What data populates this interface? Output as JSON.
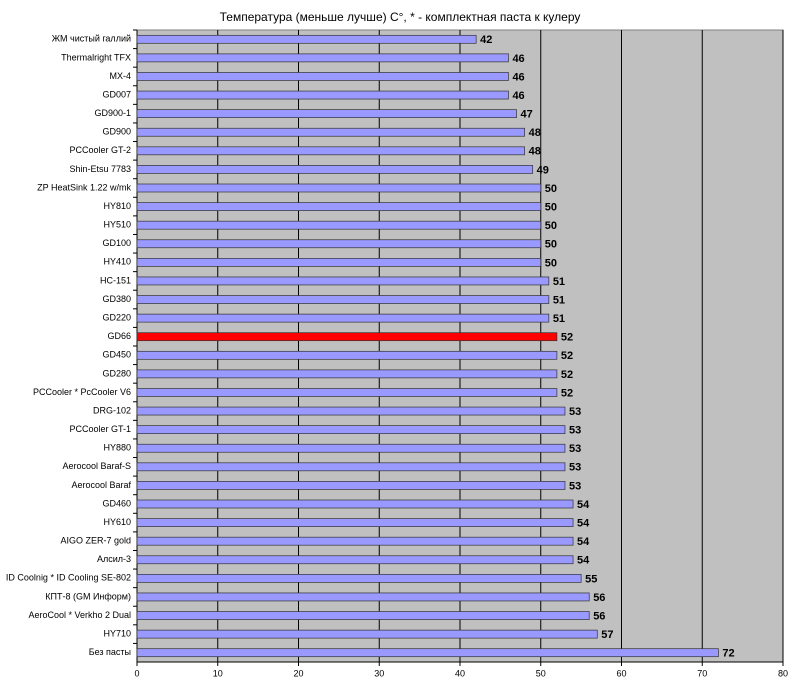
{
  "chart_data": {
    "type": "bar",
    "orientation": "horizontal",
    "title": "Температура (меньше лучше) C°, * - комплектная паста к кулеру",
    "categories": [
      "ЖМ чистый галлий",
      "Thermalright TFX",
      "MX-4",
      "GD007",
      "GD900-1",
      "GD900",
      "PCCooler GT-2",
      "Shin-Etsu 7783",
      "ZP HeatSink 1.22 w/mk",
      "HY810",
      "HY510",
      "GD100",
      "HY410",
      "HC-151",
      "GD380",
      "GD220",
      "GD66",
      "GD450",
      "GD280",
      "PCCooler * PcCooler V6",
      "DRG-102",
      "PCCooler GT-1",
      "HY880",
      "Aerocool Baraf-S",
      "Aerocool Baraf",
      "GD460",
      "HY610",
      "AIGO ZER-7 gold",
      "Алсил-3",
      "ID Coolnig * ID Cooling SE-802",
      "КПТ-8 (GM Информ)",
      "AeroCool * Verkho 2 Dual",
      "HY710",
      "Без пасты"
    ],
    "values": [
      42,
      46,
      46,
      46,
      47,
      48,
      48,
      49,
      50,
      50,
      50,
      50,
      50,
      51,
      51,
      51,
      52,
      52,
      52,
      52,
      53,
      53,
      53,
      53,
      53,
      54,
      54,
      54,
      54,
      55,
      56,
      56,
      57,
      72
    ],
    "colors": [
      "#9999ff",
      "#9999ff",
      "#9999ff",
      "#9999ff",
      "#9999ff",
      "#9999ff",
      "#9999ff",
      "#9999ff",
      "#9999ff",
      "#9999ff",
      "#9999ff",
      "#9999ff",
      "#9999ff",
      "#9999ff",
      "#9999ff",
      "#9999ff",
      "#ff0000",
      "#9999ff",
      "#9999ff",
      "#9999ff",
      "#9999ff",
      "#9999ff",
      "#9999ff",
      "#9999ff",
      "#9999ff",
      "#9999ff",
      "#9999ff",
      "#9999ff",
      "#9999ff",
      "#9999ff",
      "#9999ff",
      "#9999ff",
      "#9999ff",
      "#9999ff"
    ],
    "xlim": [
      0,
      80
    ],
    "xticks": [
      0,
      10,
      20,
      30,
      40,
      50,
      60,
      70,
      80
    ],
    "grid": true,
    "plot_background": "#c0c0c0"
  }
}
